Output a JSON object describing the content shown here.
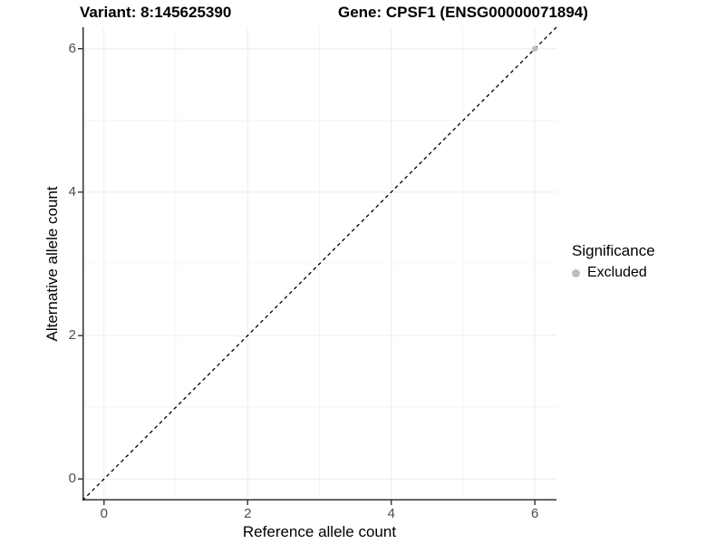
{
  "header": {
    "variant_title": "Variant: 8:145625390",
    "gene_title": "Gene: CPSF1 (ENSG00000071894)"
  },
  "chart_data": {
    "type": "scatter",
    "title": "Variant: 8:145625390 | Gene: CPSF1 (ENSG00000071894)",
    "xlabel": "Reference allele count",
    "ylabel": "Alternative allele count",
    "xlim": [
      -0.3,
      6.3
    ],
    "ylim": [
      -0.3,
      6.3
    ],
    "x_ticks": [
      0,
      2,
      4,
      6
    ],
    "y_ticks": [
      0,
      2,
      4,
      6
    ],
    "x_minor_ticks": [
      1,
      3,
      5
    ],
    "y_minor_ticks": [
      1,
      3,
      5
    ],
    "grid": true,
    "series": [
      {
        "name": "Excluded",
        "color": "#bdbdbd",
        "points": [
          [
            6,
            6
          ]
        ]
      }
    ],
    "reference_line": {
      "type": "identity",
      "from": [
        -0.3,
        -0.3
      ],
      "to": [
        6.3,
        6.3
      ],
      "style": "dashed",
      "color": "#000000"
    },
    "legend": {
      "title": "Significance",
      "position": "right",
      "items": [
        {
          "label": "Excluded",
          "color": "#bdbdbd"
        }
      ]
    }
  },
  "style": {
    "background": "#ffffff",
    "axis_line_color": "#333333",
    "tick_mark_color": "#333333",
    "grid_major_color": "#ececec",
    "grid_minor_color": "#f4f4f4",
    "tick_text_color": "#4d4d4d",
    "point_color": "#bdbdbd",
    "dashed_line_color": "#000000"
  }
}
